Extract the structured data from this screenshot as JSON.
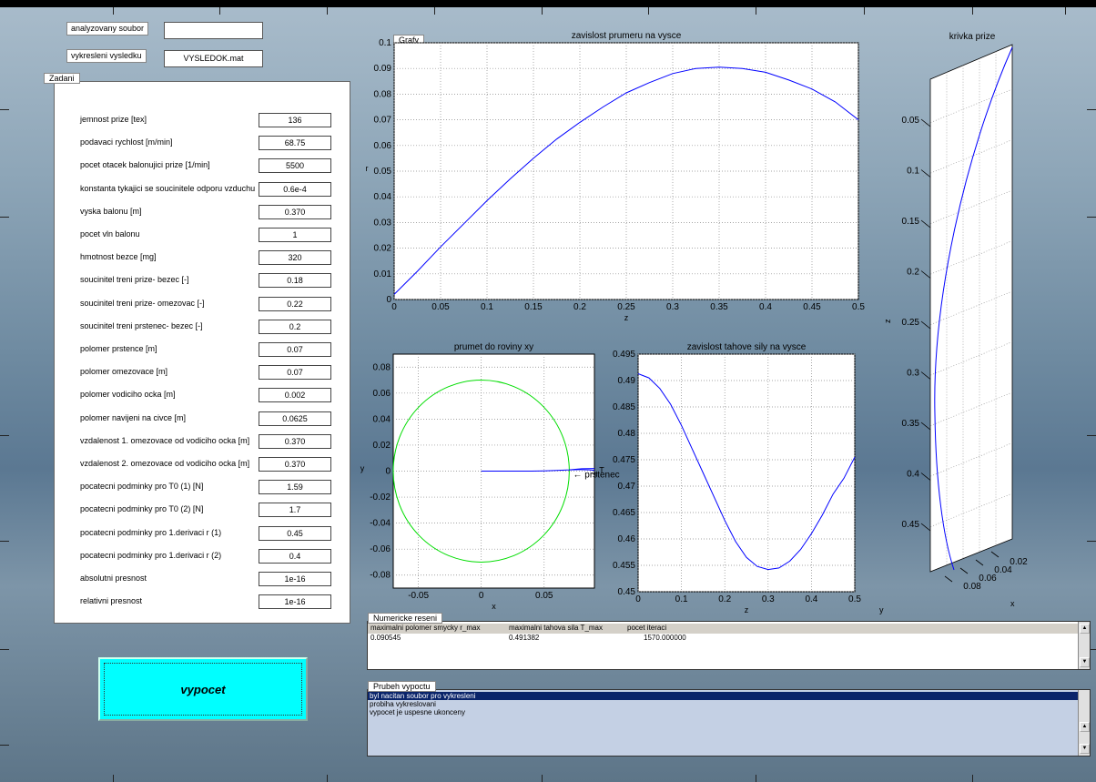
{
  "header": {
    "analyzed_file_label": "analyzovany soubor",
    "analyzed_file_value": "",
    "plot_result_label": "vykresleni vysledku",
    "plot_result_value": "VYSLEDOK.mat"
  },
  "zadani": {
    "tab_label": "Zadani",
    "rows": [
      {
        "label": "jemnost prize [tex]",
        "value": "136"
      },
      {
        "label": "podavaci rychlost [m/min]",
        "value": "68.75"
      },
      {
        "label": "pocet otacek balonujici prize [1/min]",
        "value": "5500"
      },
      {
        "label": "konstanta tykajici se soucinitele odporu vzduchu",
        "value": "0.6e-4"
      },
      {
        "label": "vyska balonu [m]",
        "value": "0.370"
      },
      {
        "label": "pocet vln balonu",
        "value": "1"
      },
      {
        "label": "hmotnost bezce [mg]",
        "value": "320"
      },
      {
        "label": "soucinitel treni prize- bezec [-]",
        "value": "0.18"
      },
      {
        "label": "soucinitel treni prize- omezovac [-]",
        "value": "0.22"
      },
      {
        "label": "soucinitel treni prstenec- bezec [-]",
        "value": "0.2"
      },
      {
        "label": "polomer prstence [m]",
        "value": "0.07"
      },
      {
        "label": "polomer omezovace [m]",
        "value": "0.07"
      },
      {
        "label": "polomer vodiciho ocka [m]",
        "value": "0.002"
      },
      {
        "label": "polomer navijeni na civce [m]",
        "value": "0.0625"
      },
      {
        "label": "vzdalenost 1. omezovace od vodiciho ocka [m]",
        "value": "0.370"
      },
      {
        "label": "vzdalenost 2. omezovace od vodiciho ocka [m]",
        "value": "0.370"
      },
      {
        "label": "pocatecni podminky pro T0 (1) [N]",
        "value": "1.59"
      },
      {
        "label": "pocatecni podminky pro T0 (2) [N]",
        "value": "1.7"
      },
      {
        "label": "pocatecni podminky pro 1.derivaci r (1)",
        "value": "0.45"
      },
      {
        "label": "pocatecni podminky pro 1.derivaci r (2)",
        "value": "0.4"
      },
      {
        "label": "absolutni presnost",
        "value": "1e-16"
      },
      {
        "label": "relativni presnost",
        "value": "1e-16"
      }
    ]
  },
  "compute_button": "vypocet",
  "grafy_tab": "Grafy",
  "numericke": {
    "tab_label": "Numericke reseni",
    "headers": [
      "maximalni polomer smycky r_max",
      "maximalni tahova sila T_max",
      "pocet iteraci"
    ],
    "values": [
      "0.090545",
      "0.491382",
      "1570.000000"
    ]
  },
  "prubeh": {
    "tab_label": "Prubeh vypoctu",
    "items": [
      "byl nacitan soubor pro vykresleni",
      "probiha vykreslovani",
      "vypocet je uspesne ukonceny"
    ],
    "selected_index": 0
  },
  "colors": {
    "accent_button": "#00ffff",
    "list_highlight": "#0a246a",
    "list_bg": "#c4d0e4",
    "curve_blue": "#0000ff",
    "circle_green": "#00dd00"
  },
  "chart_data": [
    {
      "type": "line",
      "title": "zavislost prumeru na vysce",
      "xlabel": "z",
      "ylabel": "r",
      "xlim": [
        0,
        0.5
      ],
      "ylim": [
        0,
        0.1
      ],
      "xticks": [
        "0",
        "0.05",
        "0.1",
        "0.15",
        "0.2",
        "0.25",
        "0.3",
        "0.35",
        "0.4",
        "0.45",
        "0.5"
      ],
      "yticks": [
        "0",
        "0.01",
        "0.02",
        "0.03",
        "0.04",
        "0.05",
        "0.06",
        "0.07",
        "0.08",
        "0.09",
        "0.1"
      ],
      "x": [
        0,
        0.025,
        0.05,
        0.075,
        0.1,
        0.125,
        0.15,
        0.175,
        0.2,
        0.225,
        0.25,
        0.275,
        0.3,
        0.325,
        0.35,
        0.375,
        0.4,
        0.425,
        0.45,
        0.475,
        0.5
      ],
      "y": [
        0.002,
        0.011,
        0.0205,
        0.0295,
        0.0385,
        0.047,
        0.055,
        0.0625,
        0.069,
        0.075,
        0.0805,
        0.0845,
        0.088,
        0.09,
        0.0905,
        0.09,
        0.0885,
        0.0855,
        0.082,
        0.077,
        0.07
      ],
      "grid": true
    },
    {
      "type": "line",
      "title": "prumet do roviny xy",
      "xlabel": "x",
      "ylabel": "y",
      "xlim": [
        -0.07,
        0.09
      ],
      "ylim": [
        -0.09,
        0.09
      ],
      "xticks": [
        "-0.05",
        "0",
        "0.05"
      ],
      "yticks": [
        "-0.08",
        "-0.06",
        "-0.04",
        "-0.02",
        "0",
        "0.02",
        "0.04",
        "0.06",
        "0.08"
      ],
      "circle_radius": 0.07,
      "annotation": "← prstenec",
      "annotation_short": "T",
      "x": [
        0,
        0.01,
        0.02,
        0.03,
        0.04,
        0.05,
        0.06,
        0.07,
        0.08,
        0.09
      ],
      "y": [
        0,
        0,
        0,
        0,
        0,
        0.0002,
        0.0005,
        0.001,
        0.0018,
        0.002
      ],
      "grid": true
    },
    {
      "type": "line",
      "title": "zavislost tahove sily na vysce",
      "xlabel": "z",
      "ylabel": "T",
      "xlim": [
        0,
        0.5
      ],
      "ylim": [
        0.45,
        0.495
      ],
      "xticks": [
        "0",
        "0.1",
        "0.2",
        "0.3",
        "0.4",
        "0.5"
      ],
      "yticks": [
        "0.45",
        "0.455",
        "0.46",
        "0.465",
        "0.47",
        "0.475",
        "0.48",
        "0.485",
        "0.49",
        "0.495"
      ],
      "x": [
        0,
        0.025,
        0.05,
        0.075,
        0.1,
        0.125,
        0.15,
        0.175,
        0.2,
        0.225,
        0.25,
        0.275,
        0.3,
        0.325,
        0.35,
        0.375,
        0.4,
        0.425,
        0.45,
        0.475,
        0.5
      ],
      "y": [
        0.4913,
        0.4905,
        0.4885,
        0.4855,
        0.4815,
        0.477,
        0.4725,
        0.468,
        0.4635,
        0.4595,
        0.4565,
        0.4548,
        0.4542,
        0.4545,
        0.4558,
        0.458,
        0.461,
        0.4645,
        0.4685,
        0.4715,
        0.4755
      ],
      "grid": true
    },
    {
      "type": "line",
      "title": "krivka prize",
      "zlabel": "z",
      "xlabel": "x",
      "ylabel": "y",
      "zticks": [
        "0.05",
        "0.1",
        "0.15",
        "0.2",
        "0.25",
        "0.3",
        "0.35",
        "0.4",
        "0.45"
      ],
      "xticks": [
        "0.08",
        "0.06",
        "0.04",
        "0.02"
      ],
      "grid": true
    }
  ]
}
